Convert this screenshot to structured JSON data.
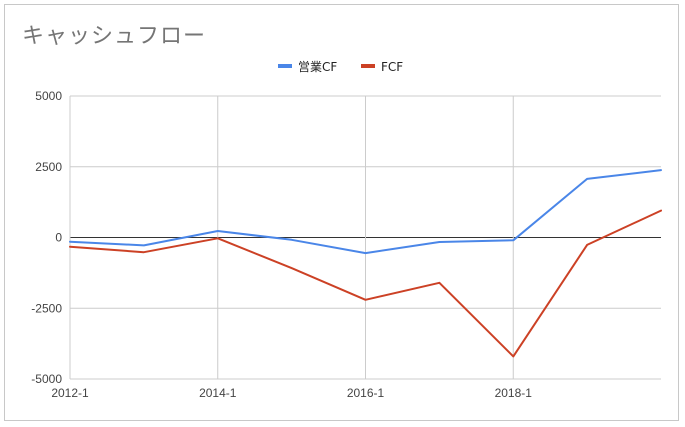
{
  "chart_data": {
    "type": "line",
    "title": "キャッシュフロー",
    "xlabel": "",
    "ylabel": "",
    "x": [
      "2012-1",
      "2013-1",
      "2014-1",
      "2015-1",
      "2016-1",
      "2017-1",
      "2018-1",
      "2019-1",
      "2020-1"
    ],
    "x_tick_labels": [
      "2012-1",
      "2014-1",
      "2016-1",
      "2018-1"
    ],
    "ylim": [
      -5000,
      5000
    ],
    "y_ticks": [
      5000,
      2500,
      0,
      -2500,
      -5000
    ],
    "grid": true,
    "legend_position": "top",
    "series": [
      {
        "name": "営業CF",
        "color": "#4a86e8",
        "values": [
          -150,
          -280,
          230,
          -80,
          -550,
          -160,
          -100,
          2070,
          2380
        ]
      },
      {
        "name": "FCF",
        "color": "#cc4125",
        "values": [
          -330,
          -520,
          -30,
          -1080,
          -2200,
          -1600,
          -4200,
          -260,
          950
        ]
      }
    ]
  }
}
